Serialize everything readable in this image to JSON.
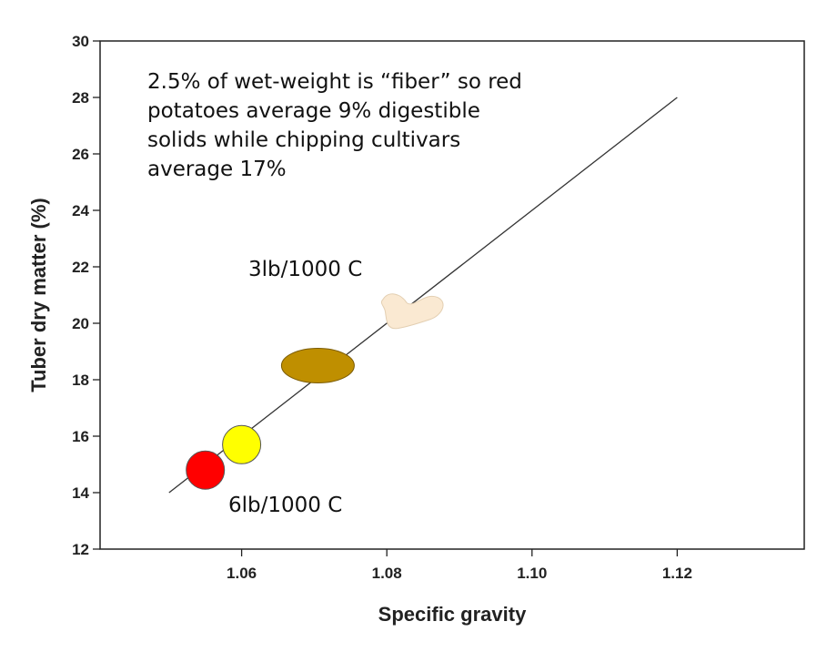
{
  "chart_data": {
    "type": "scatter",
    "title": "",
    "xlabel": "Specific gravity",
    "ylabel": "Tuber dry matter (%)",
    "xlim": [
      1.0405,
      1.1375
    ],
    "ylim": [
      12,
      30
    ],
    "x_ticks": [
      1.06,
      1.08,
      1.1,
      1.12
    ],
    "x_tick_labels": [
      "1.06",
      "1.08",
      "1.10",
      "1.12"
    ],
    "y_ticks": [
      12,
      14,
      16,
      18,
      20,
      22,
      24,
      26,
      28,
      30
    ],
    "y_tick_labels": [
      "12",
      "14",
      "16",
      "18",
      "20",
      "22",
      "24",
      "26",
      "28",
      "30"
    ],
    "grid": false,
    "trend_line": {
      "x": [
        1.05,
        1.12
      ],
      "y": [
        14,
        28
      ]
    },
    "markers": [
      {
        "name": "red potato",
        "shape": "circle",
        "x": 1.055,
        "y": 14.8,
        "color": "#ff0000"
      },
      {
        "name": "yellow potato",
        "shape": "circle",
        "x": 1.06,
        "y": 15.7,
        "color": "#ffff00"
      },
      {
        "name": "brown potato",
        "shape": "ellipse",
        "x": 1.0705,
        "y": 18.5,
        "color": "#bf8f00"
      },
      {
        "name": "chipping potato",
        "shape": "blob",
        "x": 1.0835,
        "y": 20.4,
        "color": "#fae9d2"
      }
    ],
    "annotations": {
      "note_lines": [
        "2.5% of wet-weight is “fiber” so red",
        "potatoes average 9% digestible",
        "solids while chipping cultivars",
        "average 17%"
      ],
      "upper_label": "3lb/1000 C",
      "lower_label": "6lb/1000 C"
    }
  }
}
